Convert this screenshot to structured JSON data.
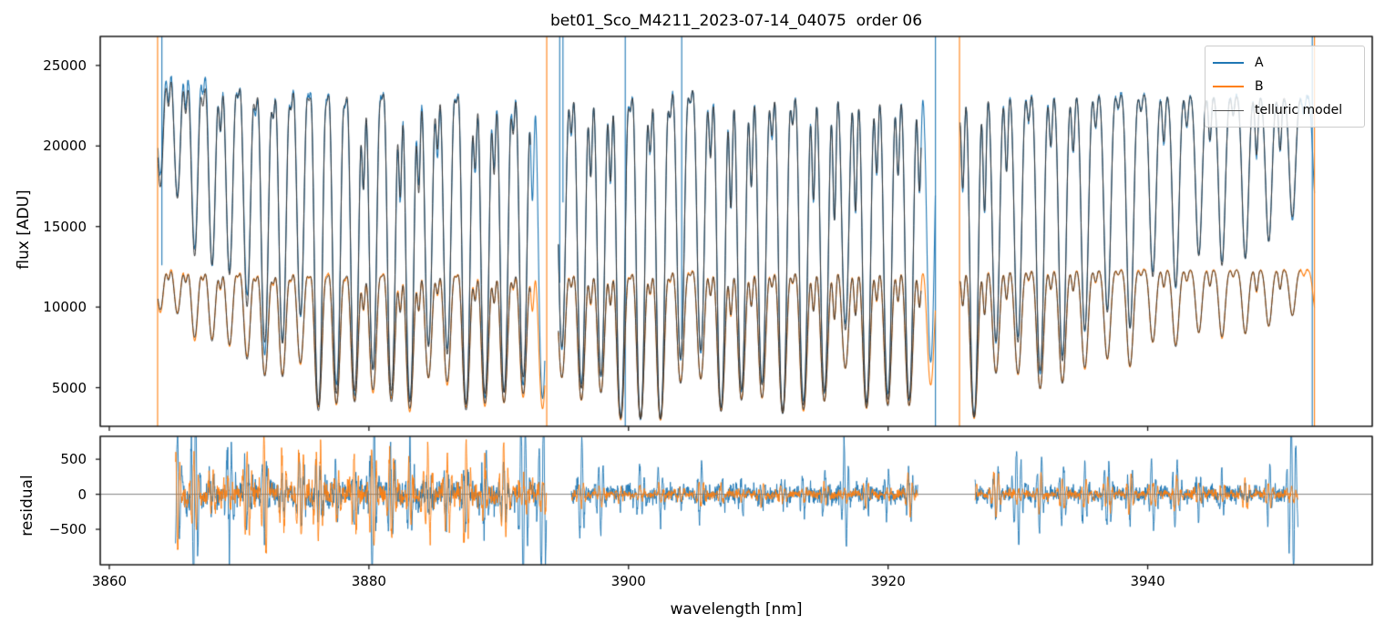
{
  "figure": {
    "title": "bet01_Sco_M4211_2023-07-14_04075  order 06",
    "background": "#ffffff"
  },
  "legend": {
    "entries": [
      {
        "label": "A",
        "color": "#1f77b4",
        "line_width": 2
      },
      {
        "label": "B",
        "color": "#ff7f0e",
        "line_width": 2
      },
      {
        "label": "telluric model",
        "color": "#555555",
        "line_width": 1.3
      }
    ]
  },
  "chart_data": [
    {
      "type": "line",
      "panel": "flux",
      "title": "bet01_Sco_M4211_2023-07-14_04075  order 06",
      "ylabel": "flux [ADU]",
      "xlabel": "",
      "xlim": [
        3859.3,
        3957.3
      ],
      "ylim": [
        2600,
        26800
      ],
      "xticks": [
        3860,
        3880,
        3900,
        3920,
        3940
      ],
      "yticks": [
        5000,
        10000,
        15000,
        20000,
        25000
      ],
      "grid": false,
      "legend_position": "upper right",
      "series": [
        {
          "name": "A",
          "color": "#1f77b4",
          "kind": "observed spectrum",
          "continuum_adu_at_3864nm": 25430,
          "continuum_slope_adu_per_nm": -26
        },
        {
          "name": "B",
          "color": "#ff7f0e",
          "kind": "observed spectrum",
          "continuum_adu_at_3864nm": 12690,
          "continuum_slope_adu_per_nm": -3.6,
          "depth_exponent": 0.68
        },
        {
          "name": "telluric model",
          "color": "#383838",
          "kind": "model"
        }
      ],
      "segments_nm": [
        [
          3863.75,
          3893.55
        ],
        [
          3894.6,
          3923.65
        ],
        [
          3925.55,
          3952.85
        ]
      ],
      "telluric_comb": {
        "first_line_nm": 3861.3,
        "spacing_start_nm": 1.3,
        "spacing_growth_per_nm": 0.0058,
        "line_width_nm": 0.22,
        "secondary_width_nm": 0.11,
        "depth_anchors": [
          [
            3864,
            0.38
          ],
          [
            3876,
            0.88
          ],
          [
            3926,
            0.88
          ],
          [
            3952,
            0.37
          ]
        ],
        "secondary_depth_range": [
          0.05,
          0.3
        ]
      },
      "artifact_lines": [
        {
          "series": "B",
          "nm": 3863.72,
          "to_flux": 2600
        },
        {
          "series": "A",
          "nm": 3864.05,
          "to_flux": 12600
        },
        {
          "series": "B",
          "nm": 3893.7,
          "to_flux": 2600
        },
        {
          "series": "A",
          "nm": 3894.7,
          "to_flux": 11500
        },
        {
          "series": "A",
          "nm": 3894.95,
          "to_flux": 16500
        },
        {
          "series": "A",
          "nm": 3899.75,
          "to_flux": 2600
        },
        {
          "series": "A",
          "nm": 3904.1,
          "to_flux": 8000
        },
        {
          "series": "A",
          "nm": 3923.65,
          "to_flux": 2600
        },
        {
          "series": "B",
          "nm": 3925.5,
          "to_flux": 2600
        },
        {
          "series": "A",
          "nm": 3952.68,
          "to_flux": 2600
        },
        {
          "series": "B",
          "nm": 3952.85,
          "to_flux": 2600
        }
      ]
    },
    {
      "type": "line",
      "panel": "residual",
      "ylabel": "residual",
      "xlabel": "wavelength [nm]",
      "xlim": [
        3859.3,
        3957.3
      ],
      "ylim": [
        -1006,
        827
      ],
      "xticks": [
        3860,
        3880,
        3900,
        3920,
        3940
      ],
      "yticks": [
        -500,
        0,
        500
      ],
      "zero_line_color": "#808080",
      "series": [
        {
          "name": "A",
          "color": "#1f77b4"
        },
        {
          "name": "B",
          "color": "#ff7f0e"
        }
      ],
      "segments": [
        {
          "range_nm": [
            3865.1,
            3893.7
          ],
          "sigma_A": 175,
          "sigma_B": 140,
          "burst_A": 680,
          "burst_B": 560
        },
        {
          "range_nm": [
            3895.6,
            3922.3
          ],
          "sigma_A": 112,
          "sigma_B": 55,
          "burst_A": 420,
          "burst_B": 170
        },
        {
          "range_nm": [
            3926.7,
            3951.6
          ],
          "sigma_A": 100,
          "sigma_B": 58,
          "burst_A": 400,
          "burst_B": 200
        }
      ]
    }
  ]
}
